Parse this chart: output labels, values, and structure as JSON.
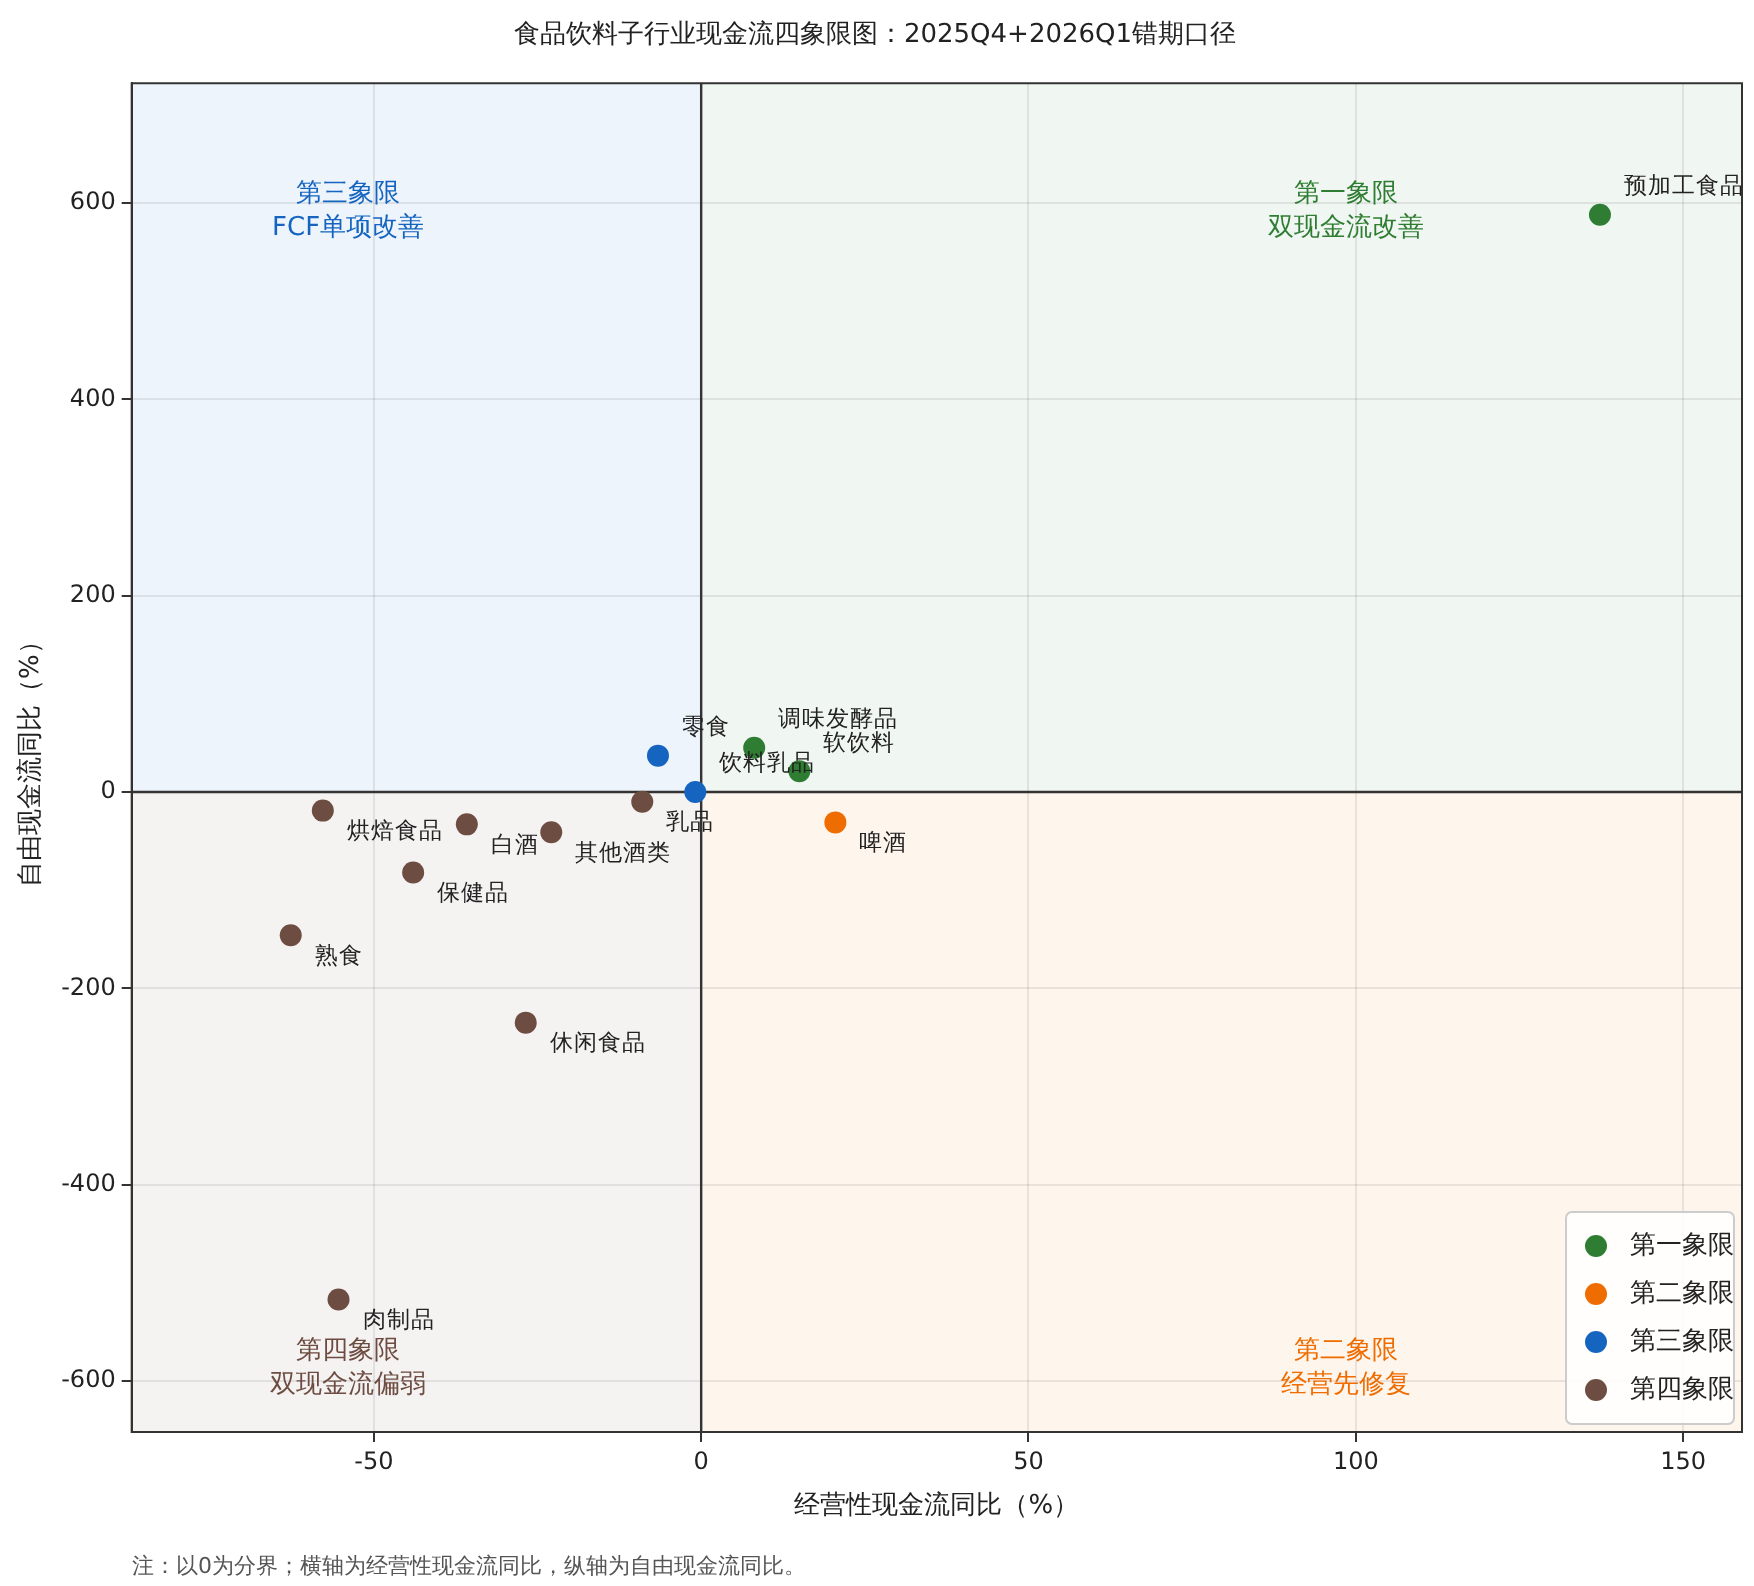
{
  "chart_data": {
    "type": "scatter",
    "title": "食品饮料子行业现金流四象限图：2025Q4+2026Q1错期口径",
    "xlabel": "经营性现金流同比（%）",
    "ylabel": "自由现金流同比（%）",
    "xlim": [
      -87,
      159
    ],
    "ylim": [
      -652,
      722
    ],
    "xticks": [
      -50,
      0,
      50,
      100,
      150
    ],
    "yticks": [
      -600,
      -400,
      -200,
      0,
      200,
      400,
      600
    ],
    "grid": true,
    "legend": "bottom right",
    "marker": "circle",
    "series": [
      {
        "name": "第一象限",
        "color": "#2e7d32",
        "x": [
          137.3,
          8.1,
          15
        ],
        "values": [
          588,
          45,
          21
        ],
        "value_labels": [
          "预加工食品",
          "调味发酵品",
          "软饮料"
        ]
      },
      {
        "name": "第二象限",
        "color": "#ef6c00",
        "x": [
          20.5
        ],
        "values": [
          -31
        ],
        "value_labels": [
          "啤酒"
        ]
      },
      {
        "name": "第三象限",
        "color": "#1565c0",
        "x": [
          -6.6,
          -0.9
        ],
        "values": [
          37,
          0
        ],
        "value_labels": [
          "零食",
          "饮料乳品"
        ]
      },
      {
        "name": "第四象限",
        "color": "#6d4c41",
        "x": [
          -9,
          -57.8,
          -35.8,
          -22.9,
          -44,
          -62.7,
          -26.8,
          -55.4
        ],
        "values": [
          -10,
          -19,
          -33,
          -41,
          -82,
          -146,
          -235,
          -517
        ],
        "value_labels": [
          "乳品",
          "烘焙食品",
          "白酒",
          "其他酒类",
          "保健品",
          "熟食",
          "休闲食品",
          "肉制品"
        ]
      }
    ],
    "annotations": [
      "第一象限双现金流改善",
      "第二象限经营先修复",
      "第三象限FCF单项改善",
      "第四象限双现金流偏弱",
      "注：以0为分界；横轴为经营性现金流同比，纵轴为自由现金流同比。"
    ]
  }
}
